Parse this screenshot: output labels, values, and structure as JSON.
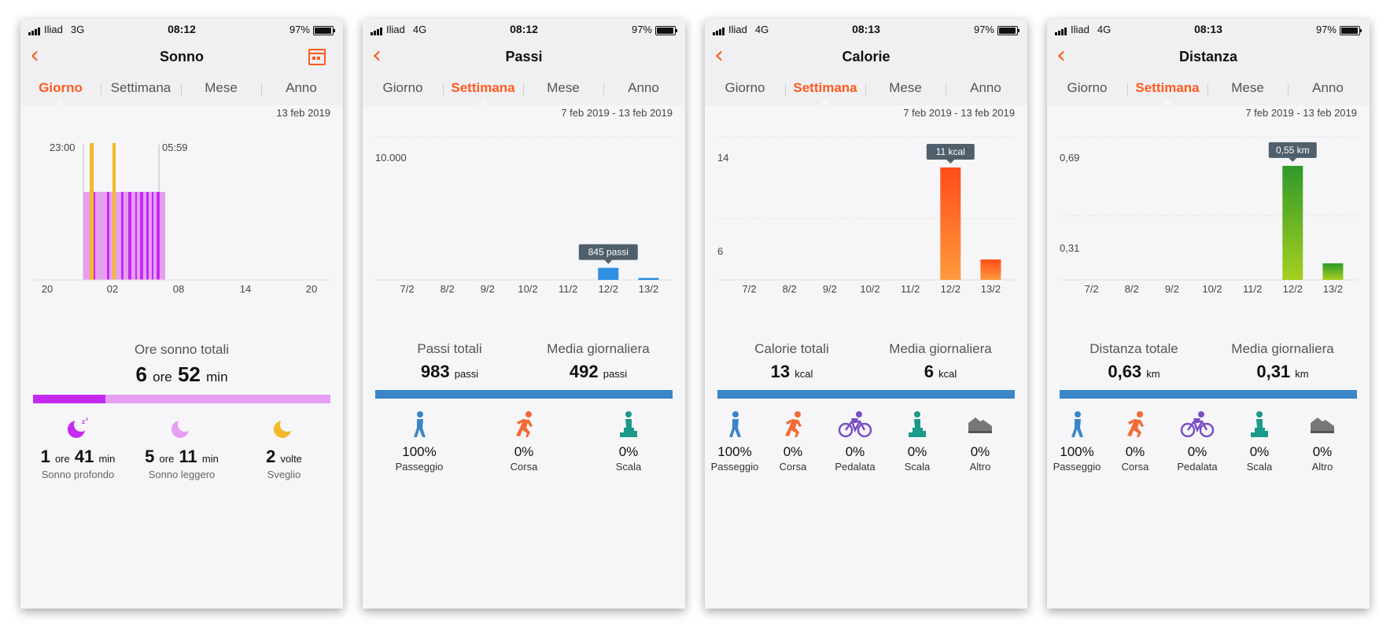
{
  "status_bars": [
    {
      "carrier": "Iliad",
      "network": "3G",
      "time": "08:12",
      "battery": "97%"
    },
    {
      "carrier": "Iliad",
      "network": "4G",
      "time": "08:12",
      "battery": "97%"
    },
    {
      "carrier": "Iliad",
      "network": "4G",
      "time": "08:13",
      "battery": "97%"
    },
    {
      "carrier": "Iliad",
      "network": "4G",
      "time": "08:13",
      "battery": "97%"
    }
  ],
  "back_glyph": "‹",
  "tabs": [
    "Giorno",
    "Settimana",
    "Mese",
    "Anno"
  ],
  "colors": {
    "accent": "#ff5a1f",
    "blue": "#3b86c8",
    "sleep_deep": "#c42bf0",
    "sleep_light": "#e69ef2",
    "awake": "#f5b82a"
  },
  "sleep": {
    "title": "Sonno",
    "date": "13 feb 2019",
    "start_label": "23:00",
    "end_label": "05:59",
    "x_ticks": [
      "20",
      "02",
      "08",
      "14",
      "20"
    ],
    "total_label": "Ore sonno totali",
    "total_hours": "6",
    "total_hours_unit": "ore",
    "total_minutes": "52",
    "total_minutes_unit": "min",
    "items": [
      {
        "value_h": "1",
        "unit_h": "ore",
        "value_m": "41",
        "unit_m": "min",
        "label": "Sonno profondo",
        "icon": "deep-sleep-icon"
      },
      {
        "value_h": "5",
        "unit_h": "ore",
        "value_m": "11",
        "unit_m": "min",
        "label": "Sonno leggero",
        "icon": "light-sleep-icon"
      },
      {
        "value": "2",
        "unit": "volte",
        "label": "Sveglio",
        "icon": "awake-icon"
      }
    ]
  },
  "steps": {
    "title": "Passi",
    "date": "7 feb 2019 - 13 feb 2019",
    "y_max_label": "10.000",
    "tooltip": "845 passi",
    "total_label": "Passi totali",
    "total_value": "983",
    "total_unit": "passi",
    "avg_label": "Media giornaliera",
    "avg_value": "492",
    "avg_unit": "passi",
    "activities": [
      {
        "pct": "100%",
        "label": "Passeggio",
        "icon": "walking-icon"
      },
      {
        "pct": "0%",
        "label": "Corsa",
        "icon": "running-icon"
      },
      {
        "pct": "0%",
        "label": "Scala",
        "icon": "stairs-icon"
      }
    ]
  },
  "calories": {
    "title": "Calorie",
    "date": "7 feb 2019 - 13 feb 2019",
    "y_labels": [
      "14",
      "6"
    ],
    "tooltip": "11 kcal",
    "total_label": "Calorie totali",
    "total_value": "13",
    "total_unit": "kcal",
    "avg_label": "Media giornaliera",
    "avg_value": "6",
    "avg_unit": "kcal",
    "activities": [
      {
        "pct": "100%",
        "label": "Passeggio",
        "icon": "walking-icon"
      },
      {
        "pct": "0%",
        "label": "Corsa",
        "icon": "running-icon"
      },
      {
        "pct": "0%",
        "label": "Pedalata",
        "icon": "cycling-icon"
      },
      {
        "pct": "0%",
        "label": "Scala",
        "icon": "stairs-icon"
      },
      {
        "pct": "0%",
        "label": "Altro",
        "icon": "shoe-icon"
      }
    ]
  },
  "distance": {
    "title": "Distanza",
    "date": "7 feb 2019 - 13 feb 2019",
    "y_labels": [
      "0,69",
      "0,31"
    ],
    "tooltip": "0,55 km",
    "total_label": "Distanza totale",
    "total_value": "0,63",
    "total_unit": "km",
    "avg_label": "Media giornaliera",
    "avg_value": "0,31",
    "avg_unit": "km",
    "activities": [
      {
        "pct": "100%",
        "label": "Passeggio",
        "icon": "walking-icon"
      },
      {
        "pct": "0%",
        "label": "Corsa",
        "icon": "running-icon"
      },
      {
        "pct": "0%",
        "label": "Pedalata",
        "icon": "cycling-icon"
      },
      {
        "pct": "0%",
        "label": "Scala",
        "icon": "stairs-icon"
      },
      {
        "pct": "0%",
        "label": "Altro",
        "icon": "shoe-icon"
      }
    ]
  },
  "chart_data": [
    {
      "type": "bar",
      "categories": [
        "7/2",
        "8/2",
        "9/2",
        "10/2",
        "11/2",
        "12/2",
        "13/2"
      ],
      "values": [
        0,
        0,
        0,
        0,
        0,
        845,
        138
      ],
      "ylim": [
        0,
        10000
      ],
      "unit": "passi"
    },
    {
      "type": "bar",
      "categories": [
        "7/2",
        "8/2",
        "9/2",
        "10/2",
        "11/2",
        "12/2",
        "13/2"
      ],
      "values": [
        0,
        0,
        0,
        0,
        0,
        11,
        2
      ],
      "ylim": [
        0,
        14
      ],
      "unit": "kcal"
    },
    {
      "type": "bar",
      "categories": [
        "7/2",
        "8/2",
        "9/2",
        "10/2",
        "11/2",
        "12/2",
        "13/2"
      ],
      "values": [
        0,
        0,
        0,
        0,
        0,
        0.55,
        0.08
      ],
      "ylim": [
        0,
        0.69
      ],
      "unit": "km"
    }
  ]
}
